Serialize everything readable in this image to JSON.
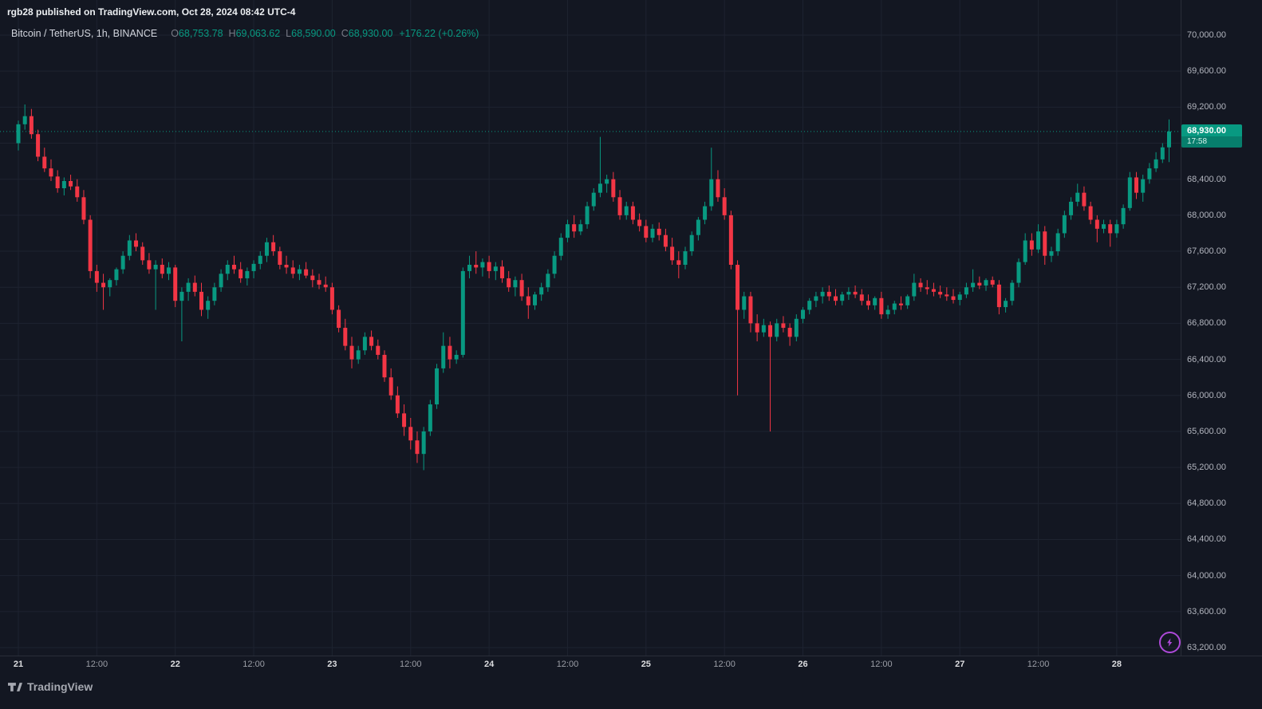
{
  "attribution": "rgb28 published on TradingView.com, Oct 28, 2024 08:42 UTC-4",
  "symbol_bar": {
    "symbol": "Bitcoin / TetherUS, 1h, BINANCE",
    "o_label": "O",
    "o_value": "68,753.78",
    "h_label": "H",
    "h_value": "69,063.62",
    "l_label": "L",
    "l_value": "68,590.00",
    "c_label": "C",
    "c_value": "68,930.00",
    "change": "+176.22 (+0.26%)"
  },
  "price_badge": {
    "price": "68,930.00",
    "countdown": "17:58"
  },
  "watermark": {
    "text": "TradingView"
  },
  "colors": {
    "bg": "#131722",
    "grid": "#1e2330",
    "axis_border": "#2a2e39",
    "up": "#089981",
    "down": "#f23645",
    "axis_text": "#b2b5be",
    "muted": "#787b86",
    "flash": "#ad49d8"
  },
  "chart_data": {
    "type": "candlestick",
    "title": "Bitcoin / TetherUS, 1h, BINANCE",
    "interval": "1h",
    "grid": true,
    "y_axis_side": "right",
    "y_grid_step": 400,
    "ylim": [
      63110,
      70120
    ],
    "y_ticks": [
      "70,000.00",
      "69,600.00",
      "69,200.00",
      "68,800.00",
      "68,400.00",
      "68,000.00",
      "67,600.00",
      "67,200.00",
      "66,800.00",
      "66,400.00",
      "66,000.00",
      "65,600.00",
      "65,200.00",
      "64,800.00",
      "64,400.00",
      "64,000.00",
      "63,600.00",
      "63,200.00"
    ],
    "x_ticks": [
      {
        "text": "21",
        "candle_index": 0,
        "major": true
      },
      {
        "text": "12:00",
        "candle_index": 12,
        "major": false
      },
      {
        "text": "22",
        "candle_index": 24,
        "major": true
      },
      {
        "text": "12:00",
        "candle_index": 36,
        "major": false
      },
      {
        "text": "23",
        "candle_index": 48,
        "major": true
      },
      {
        "text": "12:00",
        "candle_index": 60,
        "major": false
      },
      {
        "text": "24",
        "candle_index": 72,
        "major": true
      },
      {
        "text": "12:00",
        "candle_index": 84,
        "major": false
      },
      {
        "text": "25",
        "candle_index": 96,
        "major": true
      },
      {
        "text": "12:00",
        "candle_index": 108,
        "major": false
      },
      {
        "text": "26",
        "candle_index": 120,
        "major": true
      },
      {
        "text": "12:00",
        "candle_index": 132,
        "major": false
      },
      {
        "text": "27",
        "candle_index": 144,
        "major": true
      },
      {
        "text": "12:00",
        "candle_index": 156,
        "major": false
      },
      {
        "text": "28",
        "candle_index": 168,
        "major": true
      }
    ],
    "last_bar": {
      "open": 68753.78,
      "high": 69063.62,
      "low": 68590.0,
      "close": 68930.0,
      "change": 176.22,
      "change_pct": 0.26
    },
    "candles": [
      [
        68800,
        69050,
        68720,
        69010
      ],
      [
        69010,
        69230,
        68950,
        69100
      ],
      [
        69100,
        69180,
        68850,
        68900
      ],
      [
        68900,
        68950,
        68600,
        68650
      ],
      [
        68650,
        68750,
        68480,
        68520
      ],
      [
        68520,
        68620,
        68380,
        68430
      ],
      [
        68430,
        68500,
        68250,
        68300
      ],
      [
        68300,
        68420,
        68220,
        68380
      ],
      [
        68380,
        68450,
        68280,
        68320
      ],
      [
        68320,
        68400,
        68150,
        68200
      ],
      [
        68200,
        68280,
        67900,
        67950
      ],
      [
        67950,
        68000,
        67300,
        67380
      ],
      [
        67380,
        67450,
        67150,
        67250
      ],
      [
        67250,
        67350,
        66950,
        67200
      ],
      [
        67200,
        67300,
        67100,
        67280
      ],
      [
        67280,
        67420,
        67220,
        67400
      ],
      [
        67400,
        67600,
        67350,
        67550
      ],
      [
        67550,
        67780,
        67500,
        67720
      ],
      [
        67720,
        67800,
        67600,
        67650
      ],
      [
        67650,
        67700,
        67450,
        67500
      ],
      [
        67500,
        67580,
        67350,
        67400
      ],
      [
        67400,
        67500,
        66950,
        67450
      ],
      [
        67450,
        67520,
        67300,
        67350
      ],
      [
        67350,
        67480,
        67280,
        67420
      ],
      [
        67420,
        67450,
        66980,
        67050
      ],
      [
        67050,
        67200,
        66600,
        67150
      ],
      [
        67150,
        67300,
        67050,
        67250
      ],
      [
        67250,
        67330,
        67100,
        67150
      ],
      [
        67150,
        67250,
        66880,
        66950
      ],
      [
        66950,
        67100,
        66850,
        67050
      ],
      [
        67050,
        67250,
        67000,
        67200
      ],
      [
        67200,
        67400,
        67150,
        67350
      ],
      [
        67350,
        67500,
        67280,
        67450
      ],
      [
        67450,
        67550,
        67350,
        67400
      ],
      [
        67400,
        67480,
        67250,
        67300
      ],
      [
        67300,
        67420,
        67220,
        67380
      ],
      [
        67380,
        67500,
        67300,
        67460
      ],
      [
        67460,
        67600,
        67400,
        67550
      ],
      [
        67550,
        67750,
        67480,
        67700
      ],
      [
        67700,
        67780,
        67550,
        67600
      ],
      [
        67600,
        67650,
        67400,
        67450
      ],
      [
        67450,
        67550,
        67350,
        67420
      ],
      [
        67420,
        67500,
        67300,
        67350
      ],
      [
        67350,
        67450,
        67280,
        67400
      ],
      [
        67400,
        67480,
        67300,
        67330
      ],
      [
        67330,
        67400,
        67200,
        67280
      ],
      [
        67280,
        67350,
        67180,
        67230
      ],
      [
        67230,
        67320,
        67150,
        67200
      ],
      [
        67200,
        67250,
        66900,
        66950
      ],
      [
        66950,
        67000,
        66700,
        66750
      ],
      [
        66750,
        66850,
        66500,
        66550
      ],
      [
        66550,
        66650,
        66300,
        66400
      ],
      [
        66400,
        66550,
        66350,
        66500
      ],
      [
        66500,
        66700,
        66450,
        66650
      ],
      [
        66650,
        66720,
        66500,
        66550
      ],
      [
        66550,
        66620,
        66400,
        66450
      ],
      [
        66450,
        66500,
        66150,
        66200
      ],
      [
        66200,
        66300,
        65950,
        66000
      ],
      [
        66000,
        66100,
        65750,
        65800
      ],
      [
        65800,
        65900,
        65550,
        65650
      ],
      [
        65650,
        65750,
        65400,
        65500
      ],
      [
        65500,
        65600,
        65250,
        65350
      ],
      [
        65350,
        65650,
        65170,
        65600
      ],
      [
        65600,
        65950,
        65550,
        65900
      ],
      [
        65900,
        66350,
        65850,
        66300
      ],
      [
        66300,
        66700,
        66250,
        66550
      ],
      [
        66550,
        66650,
        66300,
        66400
      ],
      [
        66400,
        66500,
        66350,
        66450
      ],
      [
        66450,
        67420,
        66420,
        67380
      ],
      [
        67380,
        67550,
        67300,
        67450
      ],
      [
        67450,
        67600,
        67350,
        67420
      ],
      [
        67420,
        67520,
        67320,
        67480
      ],
      [
        67480,
        67550,
        67300,
        67380
      ],
      [
        67380,
        67480,
        67280,
        67430
      ],
      [
        67430,
        67500,
        67250,
        67300
      ],
      [
        67300,
        67380,
        67150,
        67200
      ],
      [
        67200,
        67320,
        67100,
        67280
      ],
      [
        67280,
        67350,
        67050,
        67100
      ],
      [
        67100,
        67200,
        66850,
        67000
      ],
      [
        67000,
        67150,
        66950,
        67120
      ],
      [
        67120,
        67250,
        67050,
        67200
      ],
      [
        67200,
        67400,
        67150,
        67350
      ],
      [
        67350,
        67600,
        67300,
        67550
      ],
      [
        67550,
        67800,
        67500,
        67750
      ],
      [
        67750,
        67950,
        67700,
        67900
      ],
      [
        67900,
        68000,
        67750,
        67820
      ],
      [
        67820,
        67950,
        67780,
        67900
      ],
      [
        67900,
        68150,
        67850,
        68100
      ],
      [
        68100,
        68300,
        68050,
        68250
      ],
      [
        68250,
        68870,
        68200,
        68350
      ],
      [
        68350,
        68450,
        68250,
        68400
      ],
      [
        68400,
        68480,
        68150,
        68200
      ],
      [
        68200,
        68280,
        67950,
        68000
      ],
      [
        68000,
        68150,
        67950,
        68100
      ],
      [
        68100,
        68150,
        67900,
        67950
      ],
      [
        67950,
        68020,
        67820,
        67880
      ],
      [
        67880,
        67950,
        67700,
        67750
      ],
      [
        67750,
        67900,
        67700,
        67850
      ],
      [
        67850,
        67920,
        67720,
        67780
      ],
      [
        67780,
        67850,
        67600,
        67650
      ],
      [
        67650,
        67750,
        67450,
        67500
      ],
      [
        67500,
        67600,
        67300,
        67450
      ],
      [
        67450,
        67650,
        67400,
        67600
      ],
      [
        67600,
        67820,
        67550,
        67780
      ],
      [
        67780,
        67980,
        67720,
        67950
      ],
      [
        67950,
        68150,
        67900,
        68100
      ],
      [
        68100,
        68750,
        68050,
        68400
      ],
      [
        68400,
        68500,
        68150,
        68200
      ],
      [
        68200,
        68300,
        67950,
        68000
      ],
      [
        68000,
        68050,
        67400,
        67450
      ],
      [
        67450,
        67500,
        66000,
        66950
      ],
      [
        66950,
        67150,
        66850,
        67100
      ],
      [
        67100,
        67150,
        66700,
        66800
      ],
      [
        66800,
        66900,
        66600,
        66700
      ],
      [
        66700,
        66850,
        66650,
        66780
      ],
      [
        66780,
        66820,
        65600,
        66650
      ],
      [
        66650,
        66850,
        66600,
        66800
      ],
      [
        66800,
        66880,
        66700,
        66750
      ],
      [
        66750,
        66800,
        66550,
        66650
      ],
      [
        66650,
        66900,
        66600,
        66850
      ],
      [
        66850,
        66980,
        66800,
        66950
      ],
      [
        66950,
        67080,
        66900,
        67050
      ],
      [
        67050,
        67150,
        66980,
        67100
      ],
      [
        67100,
        67200,
        67020,
        67150
      ],
      [
        67150,
        67220,
        67050,
        67100
      ],
      [
        67100,
        67180,
        67000,
        67050
      ],
      [
        67050,
        67150,
        67000,
        67120
      ],
      [
        67120,
        67200,
        67060,
        67150
      ],
      [
        67150,
        67220,
        67080,
        67120
      ],
      [
        67120,
        67180,
        67000,
        67050
      ],
      [
        67050,
        67120,
        66950,
        67000
      ],
      [
        67000,
        67100,
        66950,
        67080
      ],
      [
        67080,
        67150,
        66850,
        66900
      ],
      [
        66900,
        67000,
        66850,
        66950
      ],
      [
        66950,
        67050,
        66900,
        67020
      ],
      [
        67020,
        67100,
        66950,
        67000
      ],
      [
        67000,
        67120,
        66960,
        67100
      ],
      [
        67100,
        67350,
        67050,
        67250
      ],
      [
        67250,
        67300,
        67150,
        67200
      ],
      [
        67200,
        67280,
        67120,
        67180
      ],
      [
        67180,
        67250,
        67100,
        67150
      ],
      [
        67150,
        67220,
        67080,
        67120
      ],
      [
        67120,
        67200,
        67050,
        67100
      ],
      [
        67100,
        67180,
        67020,
        67060
      ],
      [
        67060,
        67150,
        67000,
        67120
      ],
      [
        67120,
        67250,
        67080,
        67200
      ],
      [
        67200,
        67400,
        67150,
        67250
      ],
      [
        67250,
        67320,
        67180,
        67220
      ],
      [
        67220,
        67300,
        67160,
        67280
      ],
      [
        67280,
        67320,
        67200,
        67230
      ],
      [
        67230,
        67280,
        66900,
        66980
      ],
      [
        66980,
        67080,
        66920,
        67050
      ],
      [
        67050,
        67280,
        67000,
        67250
      ],
      [
        67250,
        67520,
        67200,
        67480
      ],
      [
        67480,
        67800,
        67450,
        67720
      ],
      [
        67720,
        67800,
        67550,
        67620
      ],
      [
        67620,
        67900,
        67580,
        67820
      ],
      [
        67820,
        67880,
        67450,
        67550
      ],
      [
        67550,
        67650,
        67480,
        67600
      ],
      [
        67600,
        67850,
        67550,
        67800
      ],
      [
        67800,
        68050,
        67750,
        68000
      ],
      [
        68000,
        68200,
        67950,
        68150
      ],
      [
        68150,
        68350,
        68100,
        68250
      ],
      [
        68250,
        68320,
        68050,
        68100
      ],
      [
        68100,
        68150,
        67900,
        67950
      ],
      [
        67950,
        68000,
        67700,
        67850
      ],
      [
        67850,
        67950,
        67800,
        67900
      ],
      [
        67900,
        67950,
        67650,
        67800
      ],
      [
        67800,
        67950,
        67750,
        67900
      ],
      [
        67900,
        68120,
        67850,
        68080
      ],
      [
        68080,
        68480,
        68050,
        68420
      ],
      [
        68420,
        68480,
        68180,
        68250
      ],
      [
        68250,
        68450,
        68150,
        68400
      ],
      [
        68400,
        68580,
        68350,
        68520
      ],
      [
        68520,
        68700,
        68480,
        68620
      ],
      [
        68620,
        68800,
        68580,
        68753.78
      ],
      [
        68753.78,
        69063.62,
        68590,
        68930
      ]
    ]
  }
}
